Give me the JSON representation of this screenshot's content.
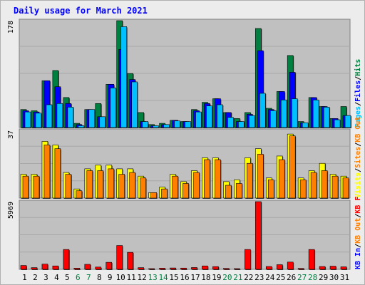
{
  "title": "Daily usage for March 2021",
  "colors": {
    "background": "#ececec",
    "panel": "#c0c0c0",
    "hits": "#008040",
    "files": "#0000ff",
    "pages": "#00c0ff",
    "visits": "#ffff00",
    "sites": "#ff8000",
    "kbin": "#ff0000",
    "weekend": "#008040",
    "weekday": "#000000"
  },
  "chart_data": [
    {
      "type": "bar",
      "title": "Daily usage for March 2021",
      "categories": [
        "1",
        "2",
        "3",
        "4",
        "5",
        "6",
        "7",
        "8",
        "9",
        "10",
        "11",
        "12",
        "13",
        "14",
        "15",
        "16",
        "17",
        "18",
        "19",
        "20",
        "21",
        "22",
        "23",
        "24",
        "25",
        "26",
        "27",
        "28",
        "29",
        "30",
        "31"
      ],
      "weekend_days": [
        "6",
        "7",
        "13",
        "14",
        "20",
        "21",
        "27",
        "28"
      ],
      "ylim": [
        0,
        178
      ],
      "max_label": "178",
      "legend": [
        "Pages",
        "Files",
        "Hits"
      ],
      "legend_position": "right",
      "series": [
        {
          "name": "Hits",
          "values": [
            30,
            28,
            78,
            95,
            50,
            7,
            30,
            40,
            72,
            178,
            90,
            25,
            5,
            7,
            12,
            10,
            30,
            42,
            48,
            25,
            15,
            25,
            165,
            32,
            60,
            120,
            10,
            50,
            35,
            15,
            35
          ]
        },
        {
          "name": "Files",
          "values": [
            28,
            26,
            78,
            68,
            40,
            5,
            30,
            18,
            72,
            130,
            80,
            10,
            3,
            5,
            12,
            10,
            28,
            40,
            48,
            25,
            10,
            22,
            128,
            30,
            60,
            92,
            8,
            50,
            35,
            15,
            20
          ]
        },
        {
          "name": "Pages",
          "values": [
            26,
            24,
            38,
            40,
            34,
            3,
            30,
            18,
            66,
            168,
            76,
            10,
            3,
            5,
            11,
            10,
            26,
            36,
            38,
            17,
            10,
            20,
            57,
            28,
            46,
            48,
            8,
            46,
            34,
            13,
            20
          ]
        }
      ]
    },
    {
      "type": "bar",
      "categories": [
        "1",
        "2",
        "3",
        "4",
        "5",
        "6",
        "7",
        "8",
        "9",
        "10",
        "11",
        "12",
        "13",
        "14",
        "15",
        "16",
        "17",
        "18",
        "19",
        "20",
        "21",
        "22",
        "23",
        "24",
        "25",
        "26",
        "27",
        "28",
        "29",
        "30",
        "31"
      ],
      "ylim": [
        0,
        37
      ],
      "max_label": "37",
      "legend": [
        "Visits",
        "Sites",
        "KB Out"
      ],
      "legend_position": "right",
      "series": [
        {
          "name": "Visits",
          "values": [
            13,
            13,
            31,
            29,
            14,
            5,
            16,
            18,
            18,
            16,
            16,
            12,
            3,
            6,
            13,
            9,
            15,
            22,
            22,
            9,
            10,
            22,
            27,
            11,
            23,
            35,
            11,
            15,
            19,
            13,
            12
          ]
        },
        {
          "name": "Sites",
          "values": [
            12,
            12,
            29,
            27,
            13,
            4,
            15,
            15,
            16,
            13,
            14,
            11,
            3,
            5,
            12,
            8,
            14,
            21,
            21,
            7,
            8,
            19,
            24,
            10,
            21,
            34,
            10,
            14,
            15,
            12,
            11
          ]
        }
      ]
    },
    {
      "type": "bar",
      "categories": [
        "1",
        "2",
        "3",
        "4",
        "5",
        "6",
        "7",
        "8",
        "9",
        "10",
        "11",
        "12",
        "13",
        "14",
        "15",
        "16",
        "17",
        "18",
        "19",
        "20",
        "21",
        "22",
        "23",
        "24",
        "25",
        "26",
        "27",
        "28",
        "29",
        "30",
        "31"
      ],
      "ylim": [
        0,
        5969
      ],
      "max_label": "5969",
      "legend": [
        "KB In",
        "KB Out",
        "KB F"
      ],
      "legend_position": "right",
      "series": [
        {
          "name": "KB F",
          "values": [
            340,
            150,
            460,
            300,
            1750,
            100,
            440,
            200,
            620,
            2100,
            1500,
            150,
            50,
            100,
            120,
            110,
            160,
            300,
            240,
            80,
            60,
            1750,
            5969,
            250,
            410,
            640,
            80,
            1750,
            250,
            280,
            220
          ]
        }
      ]
    }
  ]
}
